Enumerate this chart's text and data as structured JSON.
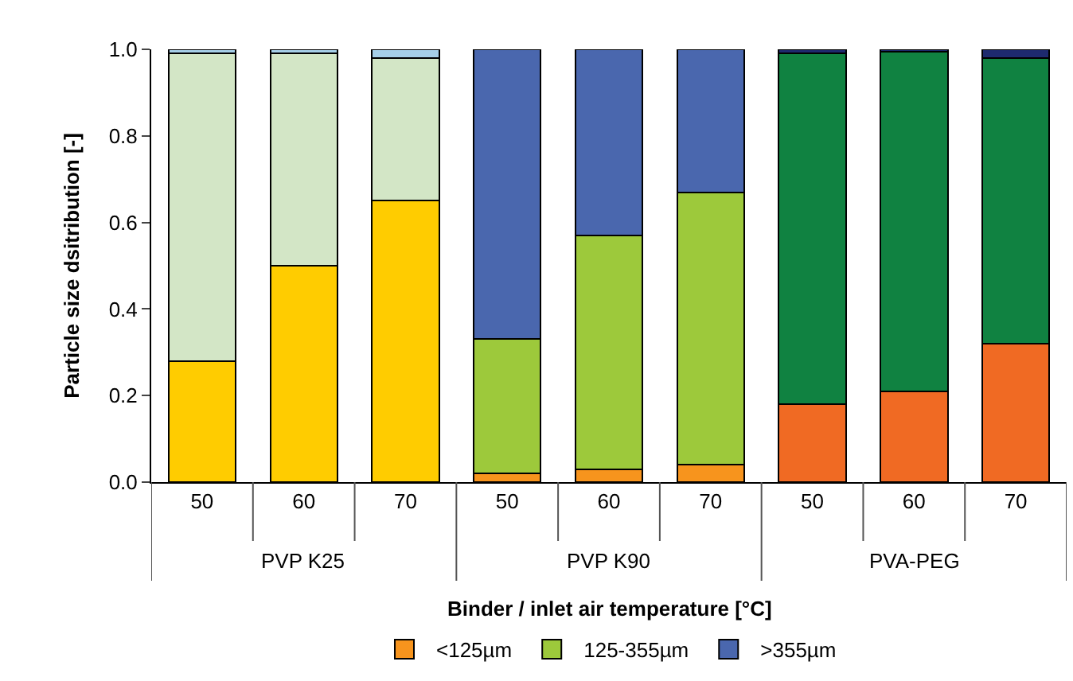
{
  "chart_data": {
    "type": "bar",
    "stacked": true,
    "xlabel": "Binder / inlet air temperature [°C]",
    "ylabel": "Particle size dsitribution [-]",
    "categories": [
      "50",
      "60",
      "70",
      "50",
      "60",
      "70",
      "50",
      "60",
      "70"
    ],
    "annotations": [
      "PVP K25",
      "PVP K90",
      "PVA-PEG"
    ],
    "series": [
      {
        "name": "<125µm",
        "color": "#f7941d",
        "values": [
          0.28,
          0.5,
          0.65,
          0.02,
          0.03,
          0.04,
          0.18,
          0.21,
          0.32
        ],
        "colors": [
          "#ffcc00",
          "#ffcc00",
          "#ffcc00",
          "#f7941d",
          "#f7941d",
          "#f7941d",
          "#f06a23",
          "#f06a23",
          "#f06a23"
        ]
      },
      {
        "name": "125-355µm",
        "color": "#9dc93b",
        "values": [
          0.71,
          0.49,
          0.33,
          0.31,
          0.54,
          0.63,
          0.81,
          0.785,
          0.66
        ],
        "colors": [
          "#d3e6c6",
          "#d3e6c6",
          "#d3e6c6",
          "#9dc93b",
          "#9dc93b",
          "#9dc93b",
          "#108241",
          "#108241",
          "#108241"
        ]
      },
      {
        "name": ">355µm",
        "color": "#4a67ae",
        "values": [
          0.01,
          0.01,
          0.02,
          0.67,
          0.43,
          0.33,
          0.01,
          0.005,
          0.02
        ],
        "colors": [
          "#a6cfe8",
          "#a6cfe8",
          "#a6cfe8",
          "#4a67ae",
          "#4a67ae",
          "#4a67ae",
          "#1e2a6e",
          "#1e2a6e",
          "#1e2a6e"
        ]
      }
    ],
    "ylim": [
      0,
      1
    ],
    "yticks": [
      {
        "value": 0,
        "label": "0.0"
      },
      {
        "value": 0.2,
        "label": "0.2"
      },
      {
        "value": 0.4,
        "label": "0.4"
      },
      {
        "value": 0.6,
        "label": "0.6"
      },
      {
        "value": 0.8,
        "label": "0.8"
      },
      {
        "value": 1,
        "label": "1.0"
      }
    ],
    "legend": "bottom"
  }
}
